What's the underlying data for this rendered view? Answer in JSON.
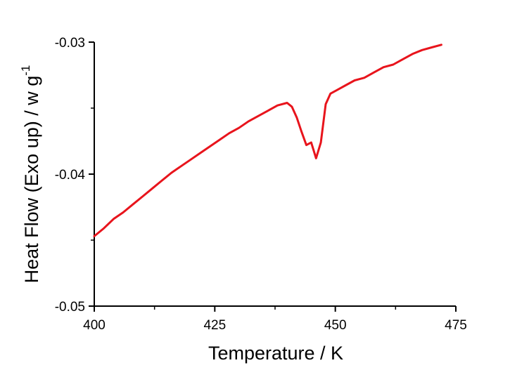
{
  "chart_data": {
    "type": "line",
    "xlabel": "Temperature / K",
    "ylabel": "Heat Flow (Exo up) / w g",
    "ylabel_sup": "-1",
    "xlim": [
      400,
      475
    ],
    "ylim": [
      -0.05,
      -0.03
    ],
    "x_ticks": [
      400,
      425,
      450,
      475
    ],
    "x_tick_labels": [
      "400",
      "425",
      "450",
      "475"
    ],
    "y_ticks": [
      -0.05,
      -0.04,
      -0.03
    ],
    "y_tick_labels": [
      "-0.05",
      "-0.04",
      "-0.03"
    ],
    "grid": false,
    "legend": "none",
    "series": [
      {
        "color": "#e8141c",
        "x": [
          400,
          402,
          404,
          406,
          408,
          410,
          412,
          414,
          416,
          418,
          420,
          422,
          424,
          426,
          428,
          430,
          432,
          434,
          436,
          438,
          440,
          441,
          442,
          443,
          444,
          445,
          446,
          447,
          448,
          449,
          450,
          451,
          452,
          454,
          456,
          458,
          460,
          462,
          464,
          466,
          468,
          470,
          472
        ],
        "y": [
          -0.0447,
          -0.0441,
          -0.0434,
          -0.0429,
          -0.0423,
          -0.0417,
          -0.0411,
          -0.0405,
          -0.0399,
          -0.0394,
          -0.0389,
          -0.0384,
          -0.0379,
          -0.0374,
          -0.0369,
          -0.0365,
          -0.036,
          -0.0356,
          -0.0352,
          -0.0348,
          -0.0346,
          -0.0349,
          -0.0357,
          -0.0368,
          -0.0378,
          -0.0376,
          -0.0388,
          -0.0376,
          -0.0347,
          -0.0339,
          -0.0337,
          -0.0335,
          -0.0333,
          -0.0329,
          -0.0327,
          -0.0323,
          -0.0319,
          -0.0317,
          -0.0313,
          -0.0309,
          -0.0306,
          -0.0304,
          -0.0302
        ]
      }
    ]
  }
}
